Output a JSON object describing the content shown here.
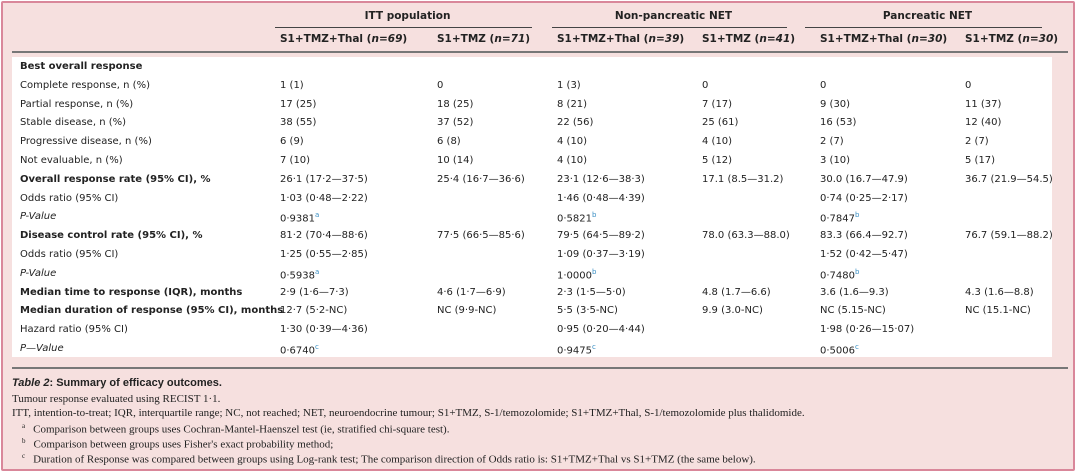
{
  "colors": {
    "frame_border": "#d9879a",
    "background": "#f6e0df",
    "footnote_marker": "#3a8fc4"
  },
  "groups": [
    "ITT population",
    "Non-pancreatic NET",
    "Pancreatic NET"
  ],
  "columns": [
    {
      "arm": "S1+TMZ+Thal",
      "n": "n=69"
    },
    {
      "arm": "S1+TMZ",
      "n": "n=71"
    },
    {
      "arm": "S1+TMZ+Thal",
      "n": "n=39"
    },
    {
      "arm": "S1+TMZ",
      "n": "n=41"
    },
    {
      "arm": "S1+TMZ+Thal",
      "n": "n=30"
    },
    {
      "arm": "S1+TMZ",
      "n": "n=30"
    }
  ],
  "rows": [
    {
      "label": "Best overall response",
      "style": "bold",
      "cells": [
        "",
        "",
        "",
        "",
        "",
        ""
      ],
      "sup": [
        "",
        "",
        "",
        "",
        "",
        ""
      ]
    },
    {
      "label": "Complete response, n (%)",
      "style": "",
      "cells": [
        "1 (1)",
        "0",
        "1 (3)",
        "0",
        "0",
        "0"
      ],
      "sup": [
        "",
        "",
        "",
        "",
        "",
        ""
      ]
    },
    {
      "label": "Partial response, n (%)",
      "style": "",
      "cells": [
        "17 (25)",
        "18 (25)",
        "8 (21)",
        "7 (17)",
        "9 (30)",
        "11 (37)"
      ],
      "sup": [
        "",
        "",
        "",
        "",
        "",
        ""
      ]
    },
    {
      "label": "Stable disease, n (%)",
      "style": "",
      "cells": [
        "38 (55)",
        "37 (52)",
        "22 (56)",
        "25 (61)",
        "16 (53)",
        "12 (40)"
      ],
      "sup": [
        "",
        "",
        "",
        "",
        "",
        ""
      ]
    },
    {
      "label": "Progressive disease, n (%)",
      "style": "",
      "cells": [
        "6 (9)",
        "6 (8)",
        "4 (10)",
        "4 (10)",
        "2 (7)",
        "2 (7)"
      ],
      "sup": [
        "",
        "",
        "",
        "",
        "",
        ""
      ]
    },
    {
      "label": "Not evaluable, n (%)",
      "style": "",
      "cells": [
        "7 (10)",
        "10 (14)",
        "4 (10)",
        "5 (12)",
        "3 (10)",
        "5 (17)"
      ],
      "sup": [
        "",
        "",
        "",
        "",
        "",
        ""
      ]
    },
    {
      "label": "Overall response rate (95% CI), %",
      "style": "bold",
      "cells": [
        "26·1 (17·2—37·5)",
        "25·4 (16·7—36·6)",
        "23·1 (12·6—38·3)",
        "17.1 (8.5—31.2)",
        "30.0 (16.7—47.9)",
        "36.7 (21.9—54.5)"
      ],
      "sup": [
        "",
        "",
        "",
        "",
        "",
        ""
      ]
    },
    {
      "label": "Odds ratio (95% CI)",
      "style": "",
      "cells": [
        "1·03 (0·48—2·22)",
        "",
        "1·46 (0·48—4·39)",
        "",
        "0·74 (0·25—2·17)",
        ""
      ],
      "sup": [
        "",
        "",
        "",
        "",
        "",
        ""
      ]
    },
    {
      "label": "P-Value",
      "style": "ital",
      "cells": [
        "0·9381",
        "",
        "0·5821",
        "",
        "0·7847",
        ""
      ],
      "sup": [
        "a",
        "",
        "b",
        "",
        "b",
        ""
      ]
    },
    {
      "label": "Disease control rate (95% CI), %",
      "style": "bold",
      "cells": [
        "81·2 (70·4—88·6)",
        "77·5 (66·5—85·6)",
        "79·5 (64·5—89·2)",
        "78.0 (63.3—88.0)",
        "83.3 (66.4—92.7)",
        "76.7 (59.1—88.2)"
      ],
      "sup": [
        "",
        "",
        "",
        "",
        "",
        ""
      ]
    },
    {
      "label": "Odds ratio (95% CI)",
      "style": "",
      "cells": [
        "1·25 (0·55—2·85)",
        "",
        "1·09 (0·37—3·19)",
        "",
        "1·52 (0·42—5·47)",
        ""
      ],
      "sup": [
        "",
        "",
        "",
        "",
        "",
        ""
      ]
    },
    {
      "label": "P-Value",
      "style": "ital",
      "cells": [
        "0·5938",
        "",
        "1·0000",
        "",
        "0·7480",
        ""
      ],
      "sup": [
        "a",
        "",
        "b",
        "",
        "b",
        ""
      ]
    },
    {
      "label": "Median time to response (IQR), months",
      "style": "bold",
      "cells": [
        "2·9 (1·6—7·3)",
        "4·6 (1·7—6·9)",
        "2·3 (1·5—5·0)",
        "4.8 (1.7—6.6)",
        "3.6 (1.6—9.3)",
        "4.3 (1.6—8.8)"
      ],
      "sup": [
        "",
        "",
        "",
        "",
        "",
        ""
      ]
    },
    {
      "label": "Median duration of response (95% CI), months",
      "style": "bold",
      "cells": [
        "12·7 (5·2-NC)",
        "NC (9·9-NC)",
        "5·5 (3·5-NC)",
        "9.9 (3.0-NC)",
        "NC (5.15-NC)",
        "NC (15.1-NC)"
      ],
      "sup": [
        "",
        "",
        "",
        "",
        "",
        ""
      ]
    },
    {
      "label": "Hazard ratio (95% CI)",
      "style": "",
      "cells": [
        "1·30 (0·39—4·36)",
        "",
        "0·95 (0·20—4·44)",
        "",
        "1·98 (0·26—15·07)",
        ""
      ],
      "sup": [
        "",
        "",
        "",
        "",
        "",
        ""
      ]
    },
    {
      "label": "P—Value",
      "style": "ital",
      "cells": [
        "0·6740",
        "",
        "0·9475",
        "",
        "0·5006",
        ""
      ],
      "sup": [
        "c",
        "",
        "c",
        "",
        "c",
        ""
      ]
    }
  ],
  "caption": {
    "label": "Table 2",
    "title": ": Summary of efficacy outcomes.",
    "lines": [
      "Tumour response evaluated using RECIST 1·1.",
      "ITT, intention-to-treat; IQR, interquartile range; NC, not reached; NET, neuroendocrine tumour; S1+TMZ, S-1/temozolomide; S1+TMZ+Thal, S-1/temozolomide plus thalidomide."
    ],
    "footnotes": [
      {
        "mark": "a",
        "text": "Comparison between groups uses Cochran-Mantel-Haenszel test (ie, stratified chi-square test)."
      },
      {
        "mark": "b",
        "text": "Comparison between groups uses Fisher's exact probability method;"
      },
      {
        "mark": "c",
        "text": "Duration of Response was compared between groups using Log-rank test; The comparison direction of Odds ratio is: S1+TMZ+Thal vs S1+TMZ (the same below)."
      }
    ]
  }
}
